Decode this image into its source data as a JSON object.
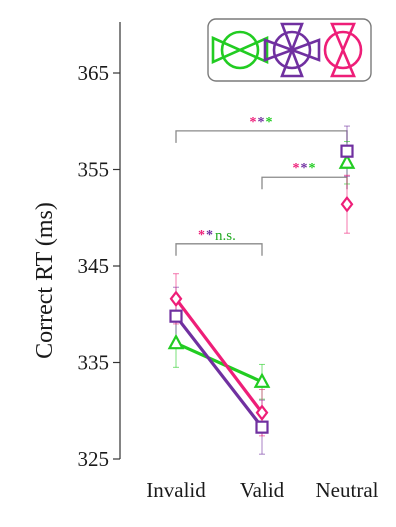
{
  "chart_data": {
    "type": "line",
    "title": "",
    "xlabel": "",
    "ylabel": "Correct RT (ms)",
    "categories": [
      "Invalid",
      "Valid",
      "Neutral"
    ],
    "yticks": [
      "325",
      "335",
      "345",
      "355",
      "365"
    ],
    "ylim": [
      325,
      367
    ],
    "grid": false,
    "legend_position": "top-right",
    "series": [
      {
        "color": "#22cc22",
        "marker": "triangle",
        "icon": "green-horizontal-bowtie-circle-icon",
        "values": [
          337.0,
          333.0,
          355.7
        ],
        "errors": [
          2.5,
          1.8,
          2.2
        ]
      },
      {
        "color": "#7030a0",
        "marker": "square",
        "icon": "purple-cross-bowtie-circle-icon",
        "values": [
          339.8,
          328.3,
          356.9
        ],
        "errors": [
          3.0,
          2.8,
          2.6
        ]
      },
      {
        "color": "#ee1e78",
        "marker": "diamond",
        "icon": "pink-vertical-bowtie-circle-icon",
        "values": [
          341.6,
          329.8,
          351.4
        ],
        "errors": [
          2.6,
          2.4,
          3.0
        ]
      }
    ],
    "annotations": [
      {
        "from": "Invalid",
        "to": "Valid",
        "level": 347.3,
        "stars": [
          {
            "text": "*",
            "color": "#ee1e78"
          },
          {
            "text": "*",
            "color": "#7030a0"
          }
        ],
        "text": "n.s.",
        "text_color": "#22aa22"
      },
      {
        "from": "Valid",
        "to": "Neutral",
        "level": 354.2,
        "stars": [
          {
            "text": "*",
            "color": "#ee1e78"
          },
          {
            "text": "*",
            "color": "#7030a0"
          },
          {
            "text": "*",
            "color": "#22cc22"
          }
        ],
        "text": "",
        "text_color": ""
      },
      {
        "from": "Invalid",
        "to": "Neutral",
        "level": 359.0,
        "stars": [
          {
            "text": "*",
            "color": "#ee1e78"
          },
          {
            "text": "*",
            "color": "#7030a0"
          },
          {
            "text": "*",
            "color": "#22cc22"
          }
        ],
        "text": "",
        "text_color": ""
      }
    ]
  }
}
